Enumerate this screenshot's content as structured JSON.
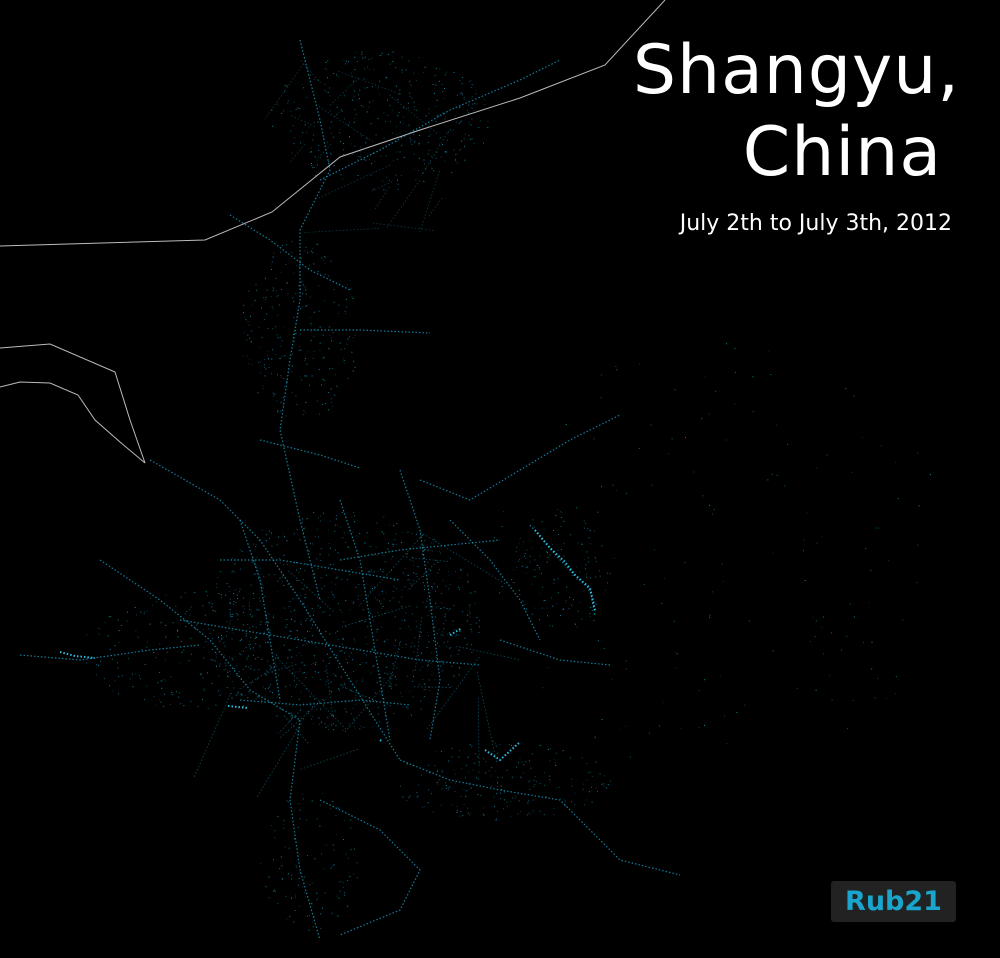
{
  "title": {
    "line1": "Shangyu,",
    "line2": "China"
  },
  "subtitle": "July 2th to July 3th, 2012",
  "brand": "Rub21",
  "colors": {
    "background": "#000000",
    "trace": "#1aa6cc",
    "trace_bright": "#2ec8ee",
    "boundary": "#bbbbbb",
    "text": "#ffffff",
    "badge_bg": "#222222",
    "badge_text": "#1aa6cc"
  }
}
